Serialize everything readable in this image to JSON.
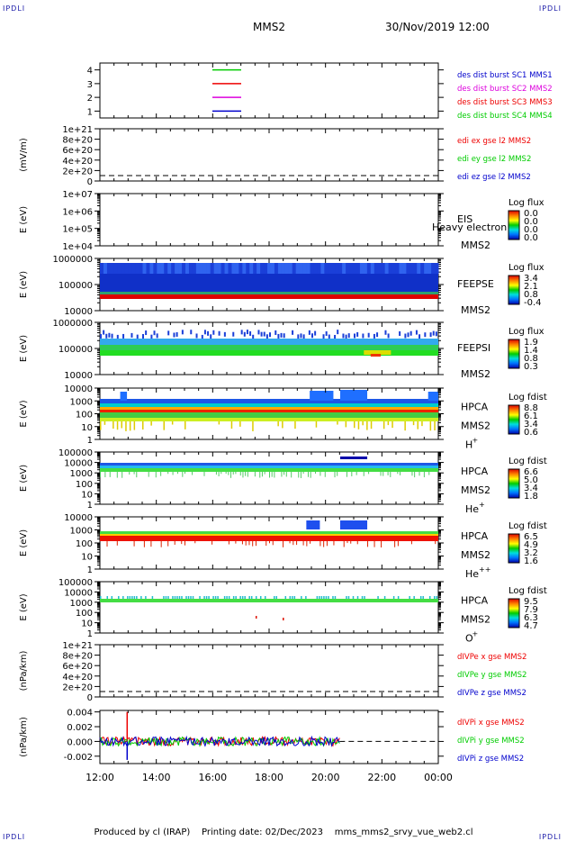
{
  "header": {
    "corner_label": "IPDLI",
    "mission": "MMS2",
    "datetime": "30/Nov/2019 12:00"
  },
  "footer": {
    "produced_by": "Produced by cl (IRAP)",
    "printing_date": "Printing date: 02/Dec/2023",
    "script_name": "mms_mms2_srvy_vue_web2.cl"
  },
  "colors": {
    "red": "#ee0000",
    "green": "#00cc00",
    "blue": "#0000cc",
    "magenta": "#dd00dd"
  },
  "chart_data": [
    {
      "type": "line",
      "panel": "burst-flags",
      "xlabel": "",
      "ylabel": "",
      "yticks": [
        "1",
        "2",
        "3",
        "4"
      ],
      "ylim": [
        0.5,
        4.5
      ],
      "series": [
        {
          "name": "des dist burst SC1 MMS1",
          "color": "#0000cc",
          "y": 1
        },
        {
          "name": "des dist burst SC2 MMS2",
          "color": "#dd00dd",
          "y": 2
        },
        {
          "name": "des dist burst SC3 MMS3",
          "color": "#ee0000",
          "y": 3
        },
        {
          "name": "des dist burst SC4 MMS4",
          "color": "#00cc00",
          "y": 4
        }
      ],
      "legend": [
        {
          "text": "des dist burst SC1 MMS1",
          "color": "#0000cc"
        },
        {
          "text": "des dist burst SC2 MMS2",
          "color": "#dd00dd"
        },
        {
          "text": "des dist burst SC3 MMS3",
          "color": "#ee0000"
        },
        {
          "text": "des dist burst SC4 MMS4",
          "color": "#00cc00"
        }
      ]
    },
    {
      "type": "line",
      "panel": "edi-e-field",
      "ylabel": "(mV/m)",
      "yticks": [
        "0",
        "2e+20",
        "4e+20",
        "6e+20",
        "8e+20",
        "1e+21"
      ],
      "ylim": [
        0,
        1e+21
      ],
      "grid": false,
      "series": [],
      "legend": [
        {
          "text": "edi ex gse l2 MMS2",
          "color": "#ee0000"
        },
        {
          "text": "edi ey gse l2 MMS2",
          "color": "#00cc00"
        },
        {
          "text": "edi ez gse l2 MMS2",
          "color": "#0000cc"
        }
      ]
    },
    {
      "type": "heatmap",
      "panel": "eis",
      "ylabel": "E (eV)",
      "yticks": [
        "1e+04",
        "1e+05",
        "1e+06",
        "1e+07"
      ],
      "instrument": "EIS",
      "spacecraft": "MMS2",
      "overlay_text": "Heavy electron to",
      "colorbar_title": "Log flux",
      "colorbar_ticks": [
        "0.0",
        "0.0",
        "0.0",
        "0.0"
      ]
    },
    {
      "type": "heatmap",
      "panel": "feeps-electron",
      "ylabel": "E (eV)",
      "yticks": [
        "10000",
        "100000",
        "1000000"
      ],
      "instrument": "FEEPSE",
      "spacecraft": "MMS2",
      "colorbar_title": "Log flux",
      "colorbar_ticks": [
        "3.4",
        "2.1",
        "0.8",
        "-0.4"
      ]
    },
    {
      "type": "heatmap",
      "panel": "feeps-ion",
      "ylabel": "E (eV)",
      "yticks": [
        "10000",
        "100000",
        "1000000"
      ],
      "instrument": "FEEPSI",
      "spacecraft": "MMS2",
      "colorbar_title": "Log flux",
      "colorbar_ticks": [
        "1.9",
        "1.4",
        "0.8",
        "0.3"
      ]
    },
    {
      "type": "heatmap",
      "panel": "hpca-h",
      "ylabel": "E (eV)",
      "yticks": [
        "1",
        "10",
        "100",
        "1000",
        "10000"
      ],
      "instrument": "HPCA",
      "spacecraft": "MMS2",
      "species": "H",
      "species_sup": "+",
      "colorbar_title": "Log fdist",
      "colorbar_ticks": [
        "8.8",
        "6.1",
        "3.4",
        "0.6"
      ]
    },
    {
      "type": "heatmap",
      "panel": "hpca-he",
      "ylabel": "E (eV)",
      "yticks": [
        "1",
        "10",
        "100",
        "1000",
        "10000",
        "100000"
      ],
      "instrument": "HPCA",
      "spacecraft": "MMS2",
      "species": "He",
      "species_sup": "+",
      "colorbar_title": "Log fdist",
      "colorbar_ticks": [
        "6.6",
        "5.0",
        "3.4",
        "1.8"
      ]
    },
    {
      "type": "heatmap",
      "panel": "hpca-he2",
      "ylabel": "E (eV)",
      "yticks": [
        "1",
        "10",
        "100",
        "1000",
        "10000"
      ],
      "instrument": "HPCA",
      "spacecraft": "MMS2",
      "species": "He",
      "species_sup": "++",
      "colorbar_title": "Log fdist",
      "colorbar_ticks": [
        "6.5",
        "4.9",
        "3.2",
        "1.6"
      ]
    },
    {
      "type": "heatmap",
      "panel": "hpca-o",
      "ylabel": "E (eV)",
      "yticks": [
        "1",
        "10",
        "100",
        "1000",
        "10000",
        "100000"
      ],
      "instrument": "HPCA",
      "spacecraft": "MMS2",
      "species": "O",
      "species_sup": "+",
      "colorbar_title": "Log fdist",
      "colorbar_ticks": [
        "9.5",
        "7.9",
        "6.3",
        "4.7"
      ]
    },
    {
      "type": "line",
      "panel": "divpe",
      "ylabel": "(nPa/km)",
      "yticks": [
        "0",
        "2e+20",
        "4e+20",
        "6e+20",
        "8e+20",
        "1e+21"
      ],
      "ylim": [
        0,
        1e+21
      ],
      "series": [],
      "legend": [
        {
          "text": "dIVPe x gse MMS2",
          "color": "#ee0000"
        },
        {
          "text": "dIVPe y gse MMS2",
          "color": "#00cc00"
        },
        {
          "text": "dIVPe z gse MMS2",
          "color": "#0000cc"
        }
      ]
    },
    {
      "type": "line",
      "panel": "divpi",
      "ylabel": "(nPa/km)",
      "yticks": [
        "-0.002",
        "0.000",
        "0.002",
        "0.004"
      ],
      "ylim": [
        -0.003,
        0.0042
      ],
      "xlim": [
        "12:00",
        "00:00"
      ],
      "data_end": "20:30",
      "series": [
        {
          "name": "dIVPi x gse MMS2",
          "color": "#ee0000",
          "spike": {
            "t": "12:58",
            "value": 0.004
          }
        },
        {
          "name": "dIVPi y gse MMS2",
          "color": "#00cc00"
        },
        {
          "name": "dIVPi z gse MMS2",
          "color": "#0000cc",
          "spike": {
            "t": "12:58",
            "value": -0.0025
          }
        }
      ],
      "legend": [
        {
          "text": "dIVPi x gse MMS2",
          "color": "#ee0000"
        },
        {
          "text": "dIVPi y gse MMS2",
          "color": "#00cc00"
        },
        {
          "text": "dIVPi z gse MMS2",
          "color": "#0000cc"
        }
      ]
    }
  ],
  "time_axis": {
    "tick_labels": [
      "12:00",
      "14:00",
      "16:00",
      "18:00",
      "20:00",
      "22:00",
      "00:00"
    ]
  }
}
